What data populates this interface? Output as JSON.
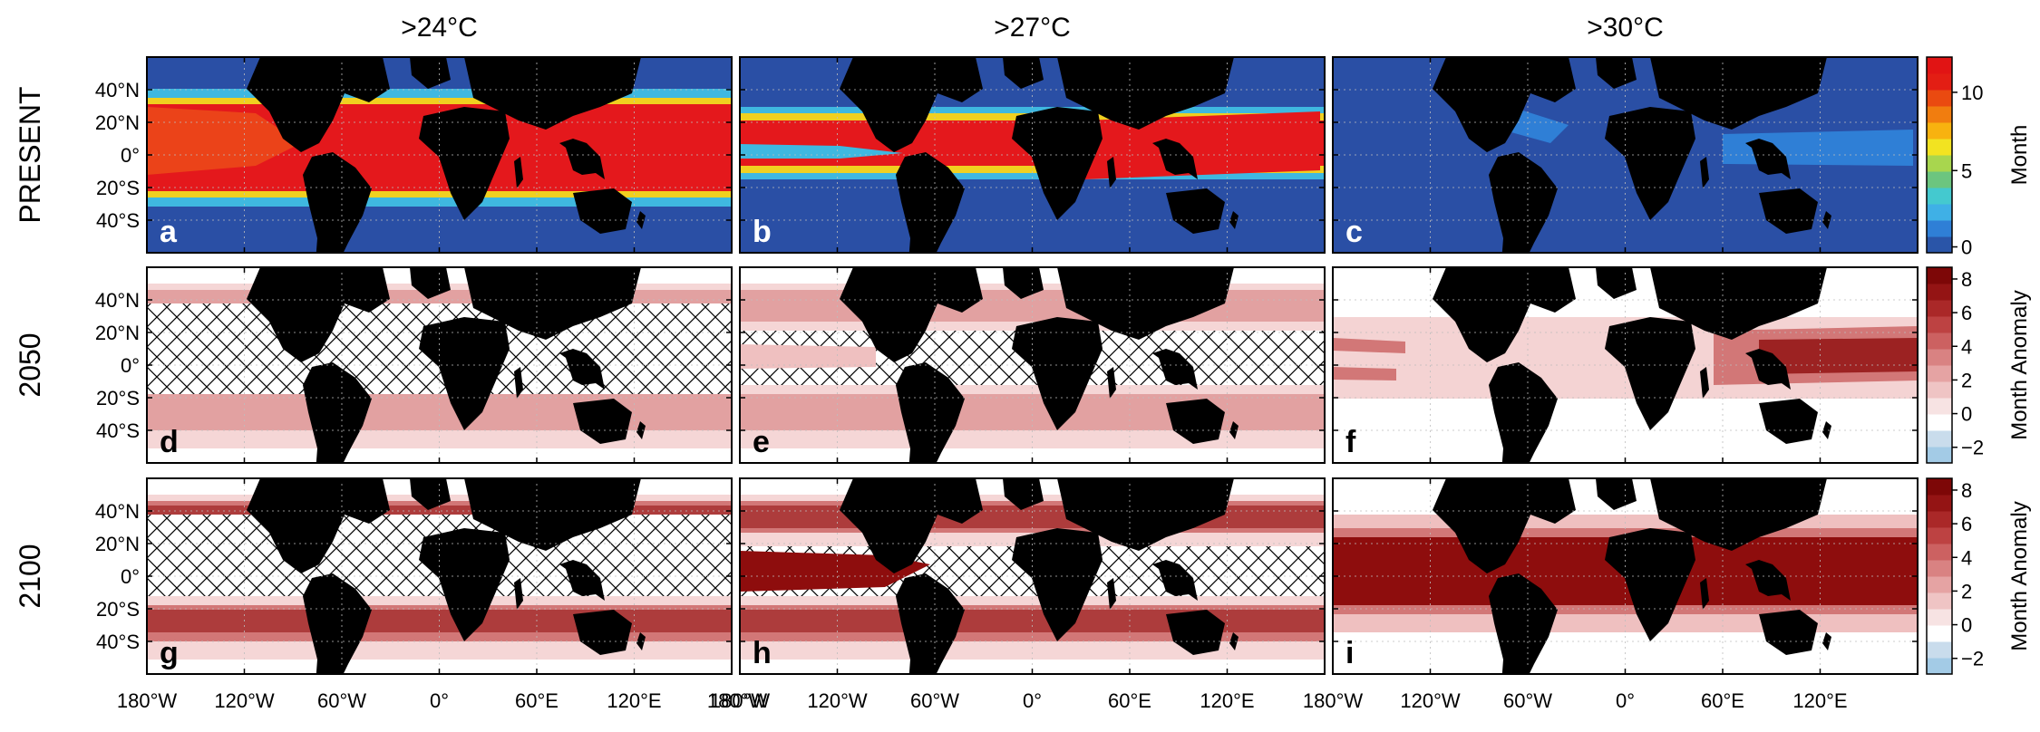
{
  "figure": {
    "column_titles": [
      ">24°C",
      ">27°C",
      ">30°C"
    ],
    "row_labels": [
      "PRESENT",
      "2050",
      "2100"
    ],
    "panel_letters": [
      "a",
      "b",
      "c",
      "d",
      "e",
      "f",
      "g",
      "h",
      "i"
    ],
    "lat_ticks": [
      "40°N",
      "20°N",
      "0°",
      "20°S",
      "40°S"
    ],
    "lon_ticks": [
      [
        "180°W",
        "120°W",
        "60°W",
        "0°",
        "60°E",
        "120°E"
      ],
      [
        "180°W",
        "120°W",
        "60°W",
        "0°",
        "60°E",
        "120°E"
      ],
      [
        "180°W",
        "120°W",
        "60°W",
        "0°",
        "60°E",
        "120°E"
      ]
    ],
    "lon_end_label": "180°W",
    "colorbars": [
      {
        "label": "Month",
        "ticks": [
          "10",
          "5",
          "0"
        ],
        "colors": [
          "#2a55a8",
          "#2f7fd6",
          "#3fb0e6",
          "#44c9cf",
          "#6cc57f",
          "#a8d64e",
          "#f2e321",
          "#f8b20f",
          "#f17d0f",
          "#ea4a10",
          "#e31e14",
          "#e11414"
        ]
      },
      {
        "label": "Month Anomaly",
        "ticks": [
          "8",
          "6",
          "4",
          "2",
          "0",
          "−2"
        ],
        "colors": [
          "#a3cbe6",
          "#c9dcec",
          "#ffffff",
          "#f7e3e3",
          "#efc4c4",
          "#e5a3a3",
          "#d98282",
          "#cc6161",
          "#bd4242",
          "#aa2828",
          "#941414",
          "#7d0707"
        ]
      },
      {
        "label": "Month Anomaly",
        "ticks": [
          "8",
          "6",
          "4",
          "2",
          "0",
          "−2"
        ],
        "colors": [
          "#a3cbe6",
          "#c9dcec",
          "#ffffff",
          "#f7e3e3",
          "#efc4c4",
          "#e5a3a3",
          "#d98282",
          "#cc6161",
          "#bd4242",
          "#aa2828",
          "#941414",
          "#7d0707"
        ]
      }
    ],
    "colors": {
      "ocean_blue": "#2a4fa5",
      "land": "#000000",
      "present_core": "#e4181c",
      "anomaly_light": "#efc0c0",
      "anomaly_mid": "#d27777",
      "anomaly_dark": "#8e0d0d",
      "negative_anomaly": "#a3cbe6"
    }
  }
}
